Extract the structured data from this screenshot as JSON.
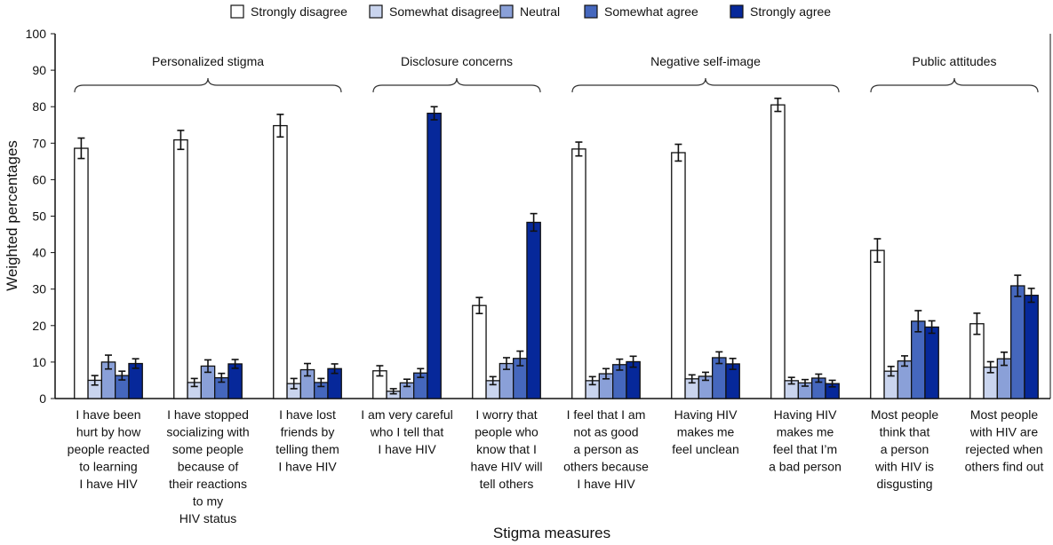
{
  "chart_data": {
    "type": "bar",
    "xlabel": "Stigma measures",
    "ylabel": "Weighted percentages",
    "ylim": [
      0,
      100
    ],
    "yticks": [
      0,
      10,
      20,
      30,
      40,
      50,
      60,
      70,
      80,
      90,
      100
    ],
    "grid": false,
    "legend_placement": "top",
    "categories": [
      [
        "I have been",
        "hurt by how",
        "people reacted",
        "to learning",
        "I have HIV"
      ],
      [
        "I have stopped",
        "socializing with",
        "some people",
        "because of",
        "their reactions",
        "to my",
        "HIV status"
      ],
      [
        "I have lost",
        "friends by",
        "telling them",
        "I have HIV"
      ],
      [
        "I am very careful",
        "who I tell that",
        "I have HIV"
      ],
      [
        "I worry that",
        "people who",
        "know that I",
        "have HIV will",
        "tell others"
      ],
      [
        "I feel that I am",
        "not as good",
        "a person as",
        "others because",
        "I have HIV"
      ],
      [
        "Having HIV",
        "makes me",
        "feel unclean"
      ],
      [
        "Having HIV",
        "makes me",
        "feel that I’m",
        "a bad person"
      ],
      [
        "Most people",
        "think that",
        "a person",
        "with HIV is",
        "disgusting"
      ],
      [
        "Most people",
        "with HIV are",
        "rejected when",
        "others find out"
      ]
    ],
    "groups": [
      {
        "label": "Personalized stigma",
        "categories": [
          0,
          1,
          2
        ]
      },
      {
        "label": "Disclosure concerns",
        "categories": [
          3,
          4
        ]
      },
      {
        "label": "Negative self-image",
        "categories": [
          5,
          6,
          7
        ]
      },
      {
        "label": "Public attitudes",
        "categories": [
          8,
          9
        ]
      }
    ],
    "series": [
      {
        "name": "Strongly disagree",
        "color": "#ffffff",
        "values": [
          68.6,
          70.9,
          74.8,
          7.6,
          25.5,
          68.4,
          67.4,
          80.5,
          40.6,
          20.5
        ],
        "error": [
          2.8,
          2.6,
          3.1,
          1.4,
          2.2,
          1.9,
          2.3,
          1.8,
          3.2,
          2.9
        ]
      },
      {
        "name": "Somewhat disagree",
        "color": "#c9d4ee",
        "values": [
          5.0,
          4.4,
          4.1,
          2.0,
          4.9,
          4.9,
          5.4,
          4.9,
          7.5,
          8.6
        ],
        "error": [
          1.3,
          1.1,
          1.4,
          0.7,
          1.1,
          1.1,
          1.1,
          0.9,
          1.3,
          1.5
        ]
      },
      {
        "name": "Neutral",
        "color": "#8aa0d8",
        "values": [
          10.0,
          8.9,
          7.9,
          4.3,
          9.6,
          6.8,
          6.1,
          4.3,
          10.3,
          10.9
        ],
        "error": [
          1.9,
          1.7,
          1.7,
          1.0,
          1.6,
          1.4,
          1.1,
          0.9,
          1.4,
          1.8
        ]
      },
      {
        "name": "Somewhat agree",
        "color": "#4567bd",
        "values": [
          6.3,
          5.7,
          4.4,
          7.0,
          11.0,
          9.3,
          11.2,
          5.6,
          21.2,
          30.9
        ],
        "error": [
          1.2,
          1.2,
          1.1,
          1.2,
          2.0,
          1.5,
          1.6,
          1.1,
          2.9,
          2.9
        ]
      },
      {
        "name": "Strongly agree",
        "color": "#06289a",
        "values": [
          9.6,
          9.5,
          8.2,
          78.2,
          48.3,
          10.1,
          9.5,
          4.1,
          19.6,
          28.3
        ],
        "error": [
          1.3,
          1.2,
          1.3,
          1.8,
          2.4,
          1.5,
          1.5,
          0.9,
          1.7,
          1.9
        ]
      }
    ]
  }
}
